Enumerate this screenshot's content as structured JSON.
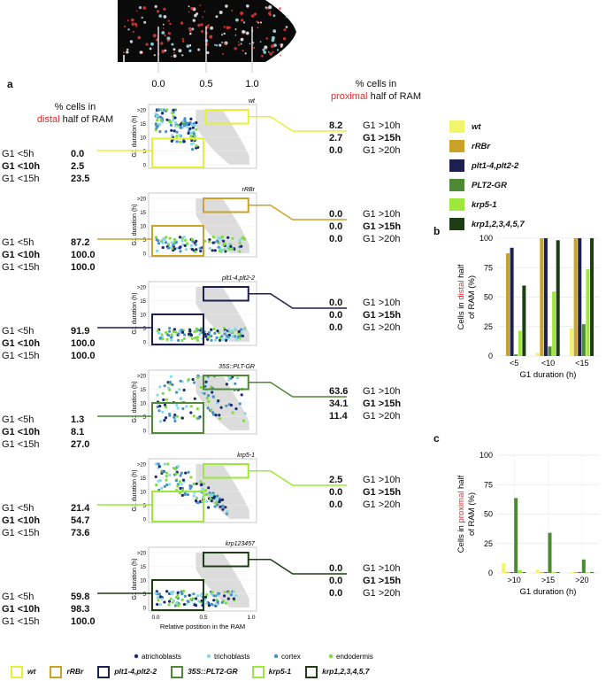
{
  "figure": {
    "panel_letters": {
      "a": "a",
      "b": "b",
      "c": "c"
    },
    "root_image_axis": {
      "ticks": [
        "0.0",
        "0.5",
        "1.0"
      ]
    },
    "headers": {
      "distal": {
        "prefix": "% cells in",
        "highlight": "distal",
        "suffix": "half of RAM"
      },
      "proximal": {
        "prefix": "% cells in",
        "highlight": "proximal",
        "suffix": "half of RAM"
      }
    },
    "scatter_axis": {
      "ylabel": "G1 duration (h)",
      "xlabel": "Relative postition in the RAM",
      "yticks": [
        "0",
        "5",
        "10",
        "15",
        ">20"
      ],
      "xticks": [
        "0.0",
        "0.5",
        "1.0"
      ]
    },
    "cell_types": [
      {
        "name": "atrichoblasts",
        "color": "#1a2b6e"
      },
      {
        "name": "trichoblasts",
        "color": "#87d8e8"
      },
      {
        "name": "cortex",
        "color": "#4a90c0"
      },
      {
        "name": "endodermis",
        "color": "#7ddc3c"
      }
    ],
    "genotypes": [
      {
        "key": "wt",
        "title": "wt",
        "color": "#e6ef3c",
        "fill": "#f0f56a",
        "distal": [
          {
            "label": "G1 <5h",
            "value": "0.0",
            "bold": false
          },
          {
            "label": "G1 <10h",
            "value": "2.5",
            "bold": true
          },
          {
            "label": "G1 <15h",
            "value": "23.5",
            "bold": false
          }
        ],
        "proximal": [
          {
            "value": "8.2",
            "label": "G1 >10h",
            "bold": false
          },
          {
            "value": "2.7",
            "label": "G1 >15h",
            "bold": true
          },
          {
            "value": "0.0",
            "label": "G1 >20h",
            "bold": false
          }
        ]
      },
      {
        "key": "rRBr",
        "title": "rRBr",
        "color": "#c9a227",
        "fill": "#c9a227",
        "distal": [
          {
            "label": "G1 <5h",
            "value": "87.2",
            "bold": false
          },
          {
            "label": "G1 <10h",
            "value": "100.0",
            "bold": true
          },
          {
            "label": "G1 <15h",
            "value": "100.0",
            "bold": false
          }
        ],
        "proximal": [
          {
            "value": "0.0",
            "label": "G1 >10h",
            "bold": false
          },
          {
            "value": "0.0",
            "label": "G1 >15h",
            "bold": true
          },
          {
            "value": "0.0",
            "label": "G1 >20h",
            "bold": false
          }
        ]
      },
      {
        "key": "plt",
        "title": "plt1-4,plt2-2",
        "color": "#1e1e50",
        "fill": "#1e1e50",
        "distal": [
          {
            "label": "G1 <5h",
            "value": "91.9",
            "bold": false
          },
          {
            "label": "G1 <10h",
            "value": "100.0",
            "bold": true
          },
          {
            "label": "G1 <15h",
            "value": "100.0",
            "bold": false
          }
        ],
        "proximal": [
          {
            "value": "0.0",
            "label": "G1 >10h",
            "bold": false
          },
          {
            "value": "0.0",
            "label": "G1 >15h",
            "bold": true
          },
          {
            "value": "0.0",
            "label": "G1 >20h",
            "bold": false
          }
        ]
      },
      {
        "key": "35S",
        "title": "35S::PLT-GR",
        "color": "#4e8a35",
        "fill": "#4e8a35",
        "distal": [
          {
            "label": "G1 <5h",
            "value": "1.3",
            "bold": false
          },
          {
            "label": "G1 <10h",
            "value": "8.1",
            "bold": true
          },
          {
            "label": "G1 <15h",
            "value": "27.0",
            "bold": false
          }
        ],
        "proximal": [
          {
            "value": "63.6",
            "label": "G1 >10h",
            "bold": false
          },
          {
            "value": "34.1",
            "label": "G1 >15h",
            "bold": true
          },
          {
            "value": "11.4",
            "label": "G1 >20h",
            "bold": false
          }
        ]
      },
      {
        "key": "krp51",
        "title": "krp5-1",
        "color": "#9ee83c",
        "fill": "#9ee83c",
        "distal": [
          {
            "label": "G1 <5h",
            "value": "21.4",
            "bold": false
          },
          {
            "label": "G1 <10h",
            "value": "54.7",
            "bold": true
          },
          {
            "label": "G1 <15h",
            "value": "73.6",
            "bold": false
          }
        ],
        "proximal": [
          {
            "value": "2.5",
            "label": "G1 >10h",
            "bold": false
          },
          {
            "value": "0.0",
            "label": "G1 >15h",
            "bold": true
          },
          {
            "value": "0.0",
            "label": "G1 >20h",
            "bold": false
          }
        ]
      },
      {
        "key": "krp123457",
        "title": "krp123457",
        "color": "#1f3d14",
        "fill": "#1f3d14",
        "distal": [
          {
            "label": "G1 <5h",
            "value": "59.8",
            "bold": false
          },
          {
            "label": "G1 <10h",
            "value": "98.3",
            "bold": true
          },
          {
            "label": "G1 <15h",
            "value": "100.0",
            "bold": false
          }
        ],
        "proximal": [
          {
            "value": "0.0",
            "label": "G1 >10h",
            "bold": false
          },
          {
            "value": "0.0",
            "label": "G1 >15h",
            "bold": true
          },
          {
            "value": "0.0",
            "label": "G1 >20h",
            "bold": false
          }
        ]
      }
    ],
    "legend_right": [
      {
        "name": "wt",
        "color": "#f0f56a"
      },
      {
        "name": "rRBr",
        "color": "#c9a227"
      },
      {
        "name": "plt1-4,plt2-2",
        "color": "#1e1e50"
      },
      {
        "name": "PLT2-GR",
        "color": "#4e8a35"
      },
      {
        "name": "krp5-1",
        "color": "#9ee83c"
      },
      {
        "name": "krp1,2,3,4,5,7",
        "color": "#1f3d14"
      }
    ],
    "legend_bottom": [
      {
        "name": "wt",
        "color": "#e6ef3c"
      },
      {
        "name": "rRBr",
        "color": "#c9a227"
      },
      {
        "name": "plt1-4,plt2-2",
        "color": "#1e1e50"
      },
      {
        "name": "35S::PLT2-GR",
        "color": "#4e8a35"
      },
      {
        "name": "krp5-1",
        "color": "#9ee83c"
      },
      {
        "name": "krp1,2,3,4,5,7",
        "color": "#1f3d14"
      }
    ]
  },
  "chart_data": [
    {
      "type": "bar",
      "panel": "b",
      "ylabel_parts": [
        "Cells in",
        "distal",
        "half",
        "of RAM (%)"
      ],
      "xlabel": "G1 duration (h)",
      "categories": [
        "<5",
        "<10",
        "<15"
      ],
      "ylim": [
        0,
        100
      ],
      "yticks": [
        0,
        25,
        50,
        75,
        100
      ],
      "series": [
        {
          "name": "wt",
          "color": "#f0f56a",
          "values": [
            0,
            2.5,
            23.5
          ]
        },
        {
          "name": "rRBr",
          "color": "#c9a227",
          "values": [
            87.2,
            100,
            100
          ]
        },
        {
          "name": "plt1-4,plt2-2",
          "color": "#1e1e50",
          "values": [
            91.9,
            100,
            100
          ]
        },
        {
          "name": "PLT2-GR",
          "color": "#4e8a35",
          "values": [
            1.3,
            8.1,
            27.0
          ]
        },
        {
          "name": "krp5-1",
          "color": "#9ee83c",
          "values": [
            21.4,
            54.7,
            73.6
          ]
        },
        {
          "name": "krp1,2,3,4,5,7",
          "color": "#1f3d14",
          "values": [
            59.8,
            98.3,
            100
          ]
        }
      ]
    },
    {
      "type": "bar",
      "panel": "c",
      "ylabel_parts": [
        "Cells in",
        "proximal",
        "half",
        "of RAM (%)"
      ],
      "xlabel": "G1 duration (h)",
      "categories": [
        ">10",
        ">15",
        ">20"
      ],
      "ylim": [
        0,
        100
      ],
      "yticks": [
        0,
        25,
        50,
        75,
        100
      ],
      "series": [
        {
          "name": "wt",
          "color": "#f0f56a",
          "values": [
            8.2,
            2.7,
            0
          ]
        },
        {
          "name": "rRBr",
          "color": "#c9a227",
          "values": [
            0,
            0,
            0
          ]
        },
        {
          "name": "plt1-4,plt2-2",
          "color": "#1e1e50",
          "values": [
            0,
            0,
            0
          ]
        },
        {
          "name": "PLT2-GR",
          "color": "#4e8a35",
          "values": [
            63.6,
            34.1,
            11.4
          ]
        },
        {
          "name": "krp5-1",
          "color": "#9ee83c",
          "values": [
            2.5,
            0,
            0
          ]
        },
        {
          "name": "krp1,2,3,4,5,7",
          "color": "#1f3d14",
          "values": [
            0,
            0,
            0
          ]
        }
      ]
    }
  ]
}
